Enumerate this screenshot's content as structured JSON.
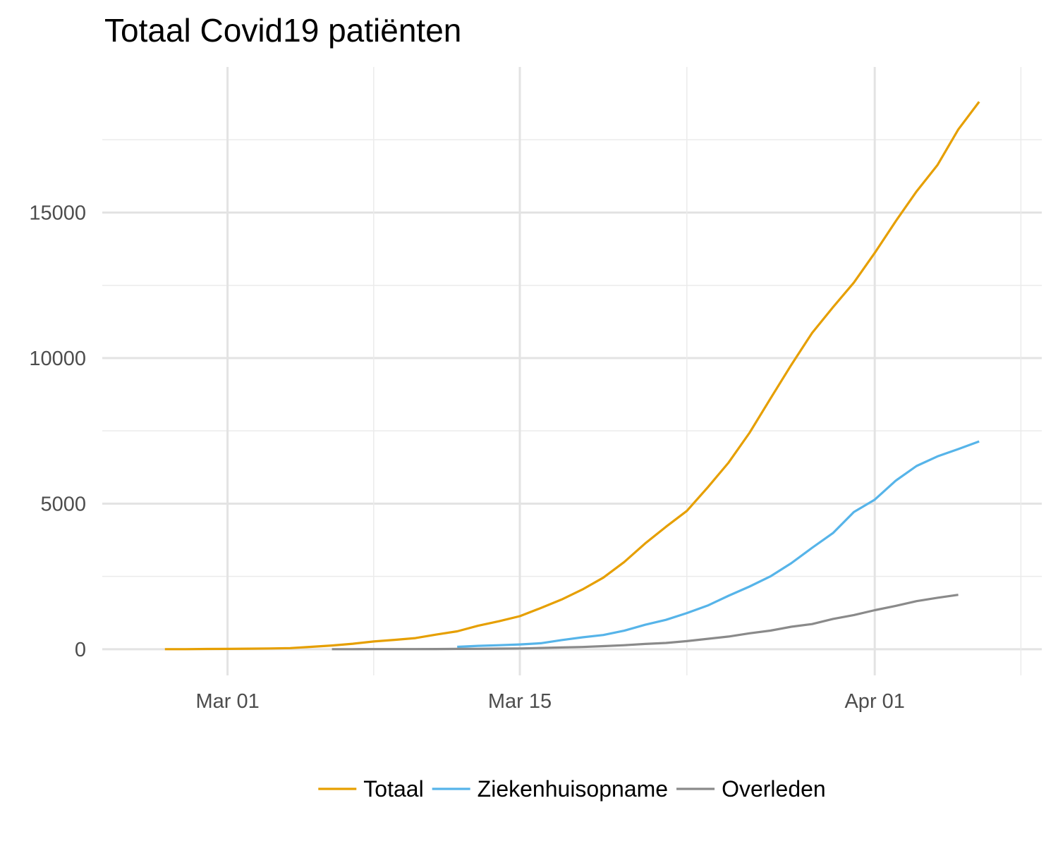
{
  "chart_data": {
    "type": "line",
    "title": "Totaal Covid19 patiënten",
    "xlabel": "",
    "ylabel": "",
    "x_type": "date",
    "x_ticks": [
      {
        "date": "2020-03-01",
        "label": "Mar 01"
      },
      {
        "date": "2020-03-15",
        "label": "Mar 15"
      },
      {
        "date": "2020-04-01",
        "label": "Apr 01"
      }
    ],
    "y_ticks": [
      0,
      5000,
      10000,
      15000
    ],
    "xlim": [
      "2020-02-24",
      "2020-04-09"
    ],
    "ylim": [
      -900,
      20000
    ],
    "grid": true,
    "legend_position": "bottom",
    "series": [
      {
        "name": "Totaal",
        "color": "#E69F00",
        "points": [
          [
            "2020-02-27",
            1
          ],
          [
            "2020-02-28",
            2
          ],
          [
            "2020-02-29",
            7
          ],
          [
            "2020-03-01",
            10
          ],
          [
            "2020-03-02",
            18
          ],
          [
            "2020-03-03",
            24
          ],
          [
            "2020-03-04",
            38
          ],
          [
            "2020-03-05",
            82
          ],
          [
            "2020-03-06",
            128
          ],
          [
            "2020-03-07",
            188
          ],
          [
            "2020-03-08",
            265
          ],
          [
            "2020-03-09",
            321
          ],
          [
            "2020-03-10",
            382
          ],
          [
            "2020-03-11",
            503
          ],
          [
            "2020-03-12",
            614
          ],
          [
            "2020-03-13",
            804
          ],
          [
            "2020-03-14",
            959
          ],
          [
            "2020-03-15",
            1135
          ],
          [
            "2020-03-16",
            1413
          ],
          [
            "2020-03-17",
            1705
          ],
          [
            "2020-03-18",
            2051
          ],
          [
            "2020-03-19",
            2460
          ],
          [
            "2020-03-20",
            2994
          ],
          [
            "2020-03-21",
            3631
          ],
          [
            "2020-03-22",
            4204
          ],
          [
            "2020-03-23",
            4749
          ],
          [
            "2020-03-24",
            5560
          ],
          [
            "2020-03-25",
            6412
          ],
          [
            "2020-03-26",
            7431
          ],
          [
            "2020-03-27",
            8603
          ],
          [
            "2020-03-28",
            9762
          ],
          [
            "2020-03-29",
            10866
          ],
          [
            "2020-03-30",
            11750
          ],
          [
            "2020-03-31",
            12595
          ],
          [
            "2020-04-01",
            13614
          ],
          [
            "2020-04-02",
            14697
          ],
          [
            "2020-04-03",
            15723
          ],
          [
            "2020-04-04",
            16627
          ],
          [
            "2020-04-05",
            17851
          ],
          [
            "2020-04-06",
            18803
          ]
        ]
      },
      {
        "name": "Ziekenhuisopname",
        "color": "#56B4E9",
        "points": [
          [
            "2020-03-12",
            80
          ],
          [
            "2020-03-13",
            115
          ],
          [
            "2020-03-14",
            136
          ],
          [
            "2020-03-15",
            162
          ],
          [
            "2020-03-16",
            205
          ],
          [
            "2020-03-17",
            314
          ],
          [
            "2020-03-18",
            408
          ],
          [
            "2020-03-19",
            487
          ],
          [
            "2020-03-20",
            636
          ],
          [
            "2020-03-21",
            840
          ],
          [
            "2020-03-22",
            1009
          ],
          [
            "2020-03-23",
            1240
          ],
          [
            "2020-03-24",
            1499
          ],
          [
            "2020-03-25",
            1836
          ],
          [
            "2020-03-26",
            2151
          ],
          [
            "2020-03-27",
            2500
          ],
          [
            "2020-03-28",
            2954
          ],
          [
            "2020-03-29",
            3483
          ],
          [
            "2020-03-30",
            3990
          ],
          [
            "2020-03-31",
            4712
          ],
          [
            "2020-04-01",
            5138
          ],
          [
            "2020-04-02",
            5786
          ],
          [
            "2020-04-03",
            6293
          ],
          [
            "2020-04-04",
            6622
          ],
          [
            "2020-04-05",
            6875
          ],
          [
            "2020-04-06",
            7137
          ]
        ]
      },
      {
        "name": "Overleden",
        "color": "#8a8a8a",
        "points": [
          [
            "2020-03-06",
            1
          ],
          [
            "2020-03-07",
            1
          ],
          [
            "2020-03-08",
            3
          ],
          [
            "2020-03-09",
            4
          ],
          [
            "2020-03-10",
            4
          ],
          [
            "2020-03-11",
            5
          ],
          [
            "2020-03-12",
            10
          ],
          [
            "2020-03-13",
            12
          ],
          [
            "2020-03-14",
            20
          ],
          [
            "2020-03-15",
            24
          ],
          [
            "2020-03-16",
            43
          ],
          [
            "2020-03-17",
            58
          ],
          [
            "2020-03-18",
            76
          ],
          [
            "2020-03-19",
            106
          ],
          [
            "2020-03-20",
            136
          ],
          [
            "2020-03-21",
            179
          ],
          [
            "2020-03-22",
            213
          ],
          [
            "2020-03-23",
            276
          ],
          [
            "2020-03-24",
            356
          ],
          [
            "2020-03-25",
            434
          ],
          [
            "2020-03-26",
            546
          ],
          [
            "2020-03-27",
            639
          ],
          [
            "2020-03-28",
            771
          ],
          [
            "2020-03-29",
            864
          ],
          [
            "2020-03-30",
            1039
          ],
          [
            "2020-03-31",
            1173
          ],
          [
            "2020-04-01",
            1339
          ],
          [
            "2020-04-02",
            1487
          ],
          [
            "2020-04-03",
            1651
          ],
          [
            "2020-04-04",
            1766
          ],
          [
            "2020-04-05",
            1867
          ]
        ]
      }
    ]
  }
}
